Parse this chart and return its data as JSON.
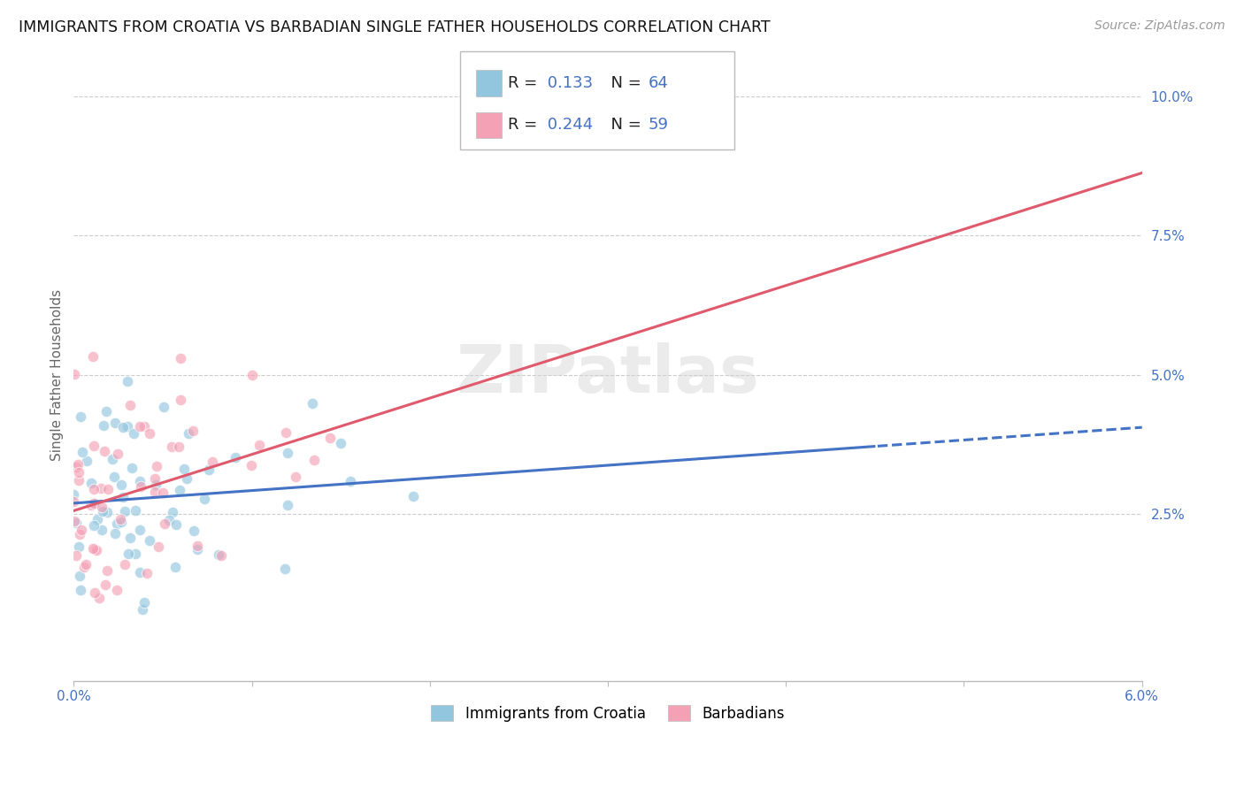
{
  "title": "IMMIGRANTS FROM CROATIA VS BARBADIAN SINGLE FATHER HOUSEHOLDS CORRELATION CHART",
  "source": "Source: ZipAtlas.com",
  "ylabel": "Single Father Households",
  "xlim": [
    0.0,
    0.06
  ],
  "ylim": [
    -0.005,
    0.105
  ],
  "yticks": [
    0.025,
    0.05,
    0.075,
    0.1
  ],
  "ytick_labels": [
    "2.5%",
    "5.0%",
    "7.5%",
    "10.0%"
  ],
  "xticks": [
    0.0,
    0.01,
    0.02,
    0.03,
    0.04,
    0.05,
    0.06
  ],
  "xtick_labels": [
    "0.0%",
    "",
    "",
    "",
    "",
    "",
    "6.0%"
  ],
  "color_croatia": "#92c5de",
  "color_barbadian": "#f4a0b5",
  "color_trendline_croatia": "#4472c4",
  "color_trendline_barbadian": "#e05a6e",
  "background_color": "#ffffff",
  "grid_color": "#cccccc",
  "watermark": "ZIPatlas",
  "R_croatia": 0.133,
  "N_croatia": 64,
  "R_barbadian": 0.244,
  "N_barbadian": 59
}
